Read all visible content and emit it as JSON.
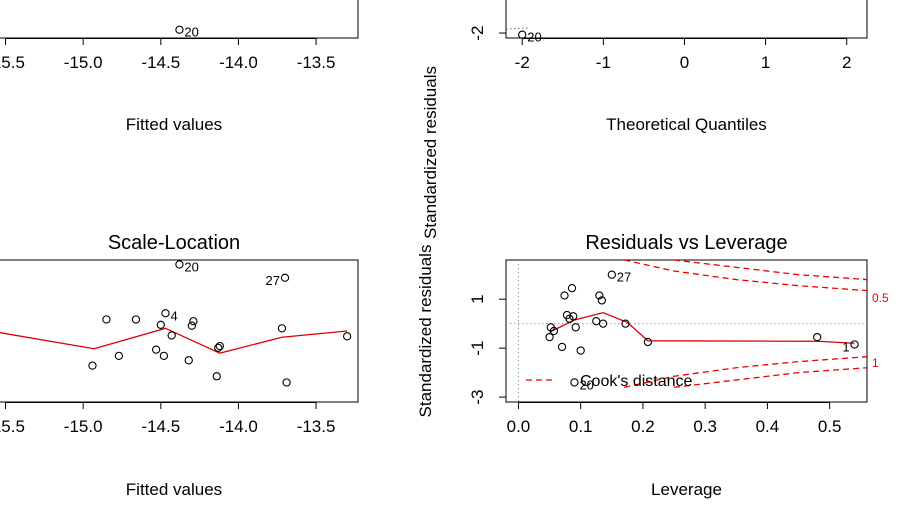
{
  "colors": {
    "points": "#000000",
    "smooth": "#dd0000",
    "cook": "#ee0000",
    "reference": "#999999"
  },
  "chart_data": [
    {
      "id": "residuals-vs-fitted",
      "type": "scatter",
      "title": "",
      "xlabel": "Fitted values",
      "ylabel": "",
      "xlim": [
        -15.6,
        -13.23
      ],
      "ylim": [
        -3.2,
        2.0
      ],
      "xticks": [
        {
          "v": -15.5,
          "label": "-15.5"
        },
        {
          "v": -15.0,
          "label": "-15.0"
        },
        {
          "v": -14.5,
          "label": "-14.5"
        },
        {
          "v": -14.0,
          "label": "-14.0"
        },
        {
          "v": -13.5,
          "label": "-13.5"
        }
      ],
      "yticks": [],
      "points": [
        {
          "x": -14.38,
          "y": -2.2
        }
      ],
      "point_labels": [
        {
          "x": -14.38,
          "y": -2.2,
          "text": "20"
        }
      ]
    },
    {
      "id": "normal-qq",
      "type": "scatter",
      "title": "",
      "xlabel": "Theoretical Quantiles",
      "ylabel": "Standardized residuals",
      "xlim": [
        -2.2,
        2.25
      ],
      "ylim": [
        -2.6,
        2.6
      ],
      "xticks": [
        {
          "v": -2,
          "label": "-2"
        },
        {
          "v": -1,
          "label": "-1"
        },
        {
          "v": 0,
          "label": "0"
        },
        {
          "v": 1,
          "label": "1"
        },
        {
          "v": 2,
          "label": "2"
        }
      ],
      "yticks": [
        {
          "v": -2,
          "label": "-2"
        }
      ],
      "points": [
        {
          "x": -2.0,
          "y": -2.2
        }
      ],
      "point_labels": [
        {
          "x": -2.0,
          "y": -2.2,
          "text": "20"
        }
      ],
      "reference_line": [
        {
          "x": -2.2,
          "y": -1.52
        },
        {
          "x": -1.92,
          "y": -1.38
        }
      ]
    },
    {
      "id": "scale-location",
      "type": "scatter",
      "title": "Scale-Location",
      "xlabel": "Fitted values",
      "ylabel": "",
      "xlim": [
        -15.6,
        -13.23
      ],
      "ylim": [
        0,
        1.6
      ],
      "xticks": [
        {
          "v": -15.5,
          "label": "-15.5"
        },
        {
          "v": -15.0,
          "label": "-15.0"
        },
        {
          "v": -14.5,
          "label": "-14.5"
        },
        {
          "v": -14.0,
          "label": "-14.0"
        },
        {
          "v": -13.5,
          "label": "-13.5"
        }
      ],
      "yticks": [],
      "points": [
        {
          "x": -15.6,
          "y": 0.84
        },
        {
          "x": -14.94,
          "y": 0.41
        },
        {
          "x": -14.85,
          "y": 0.93
        },
        {
          "x": -14.77,
          "y": 0.52
        },
        {
          "x": -14.66,
          "y": 0.93
        },
        {
          "x": -14.53,
          "y": 0.59
        },
        {
          "x": -14.5,
          "y": 0.87
        },
        {
          "x": -14.48,
          "y": 0.52
        },
        {
          "x": -14.47,
          "y": 1.0
        },
        {
          "x": -14.43,
          "y": 0.75
        },
        {
          "x": -14.38,
          "y": 1.55
        },
        {
          "x": -14.32,
          "y": 0.47
        },
        {
          "x": -14.3,
          "y": 0.86
        },
        {
          "x": -14.29,
          "y": 0.91
        },
        {
          "x": -14.14,
          "y": 0.29
        },
        {
          "x": -14.13,
          "y": 0.61
        },
        {
          "x": -14.12,
          "y": 0.63
        },
        {
          "x": -13.72,
          "y": 0.83
        },
        {
          "x": -13.7,
          "y": 1.4
        },
        {
          "x": -13.69,
          "y": 0.22
        },
        {
          "x": -13.3,
          "y": 0.74
        }
      ],
      "point_labels": [
        {
          "x": -14.38,
          "y": 1.55,
          "text": "20"
        },
        {
          "x": -13.7,
          "y": 1.4,
          "text": "27"
        },
        {
          "x": -14.47,
          "y": 1.0,
          "text": "4"
        }
      ],
      "smooth_line": [
        {
          "x": -15.6,
          "y": 0.8
        },
        {
          "x": -14.93,
          "y": 0.6
        },
        {
          "x": -14.47,
          "y": 0.83
        },
        {
          "x": -14.12,
          "y": 0.55
        },
        {
          "x": -13.72,
          "y": 0.73
        },
        {
          "x": -13.3,
          "y": 0.8
        }
      ]
    },
    {
      "id": "residuals-vs-leverage",
      "type": "scatter",
      "title": "Residuals vs Leverage",
      "xlabel": "Leverage",
      "ylabel": "Standardized residuals",
      "xlim": [
        -0.02,
        0.56
      ],
      "ylim": [
        -3.2,
        2.6
      ],
      "xticks": [
        {
          "v": 0.0,
          "label": "0.0"
        },
        {
          "v": 0.1,
          "label": "0.1"
        },
        {
          "v": 0.2,
          "label": "0.2"
        },
        {
          "v": 0.3,
          "label": "0.3"
        },
        {
          "v": 0.4,
          "label": "0.4"
        },
        {
          "v": 0.5,
          "label": "0.5"
        }
      ],
      "yticks": [
        {
          "v": -3,
          "label": "-3"
        },
        {
          "v": -1,
          "label": "-1"
        },
        {
          "v": 1,
          "label": "1"
        }
      ],
      "points": [
        {
          "x": 0.05,
          "y": -0.55
        },
        {
          "x": 0.052,
          "y": -0.15
        },
        {
          "x": 0.057,
          "y": -0.3
        },
        {
          "x": 0.07,
          "y": -0.95
        },
        {
          "x": 0.074,
          "y": 1.15
        },
        {
          "x": 0.078,
          "y": 0.35
        },
        {
          "x": 0.082,
          "y": 0.2
        },
        {
          "x": 0.086,
          "y": 1.45
        },
        {
          "x": 0.088,
          "y": 0.3
        },
        {
          "x": 0.09,
          "y": -2.4
        },
        {
          "x": 0.092,
          "y": -0.15
        },
        {
          "x": 0.1,
          "y": -1.1
        },
        {
          "x": 0.125,
          "y": 0.1
        },
        {
          "x": 0.13,
          "y": 1.15
        },
        {
          "x": 0.134,
          "y": 0.95
        },
        {
          "x": 0.136,
          "y": 0.0
        },
        {
          "x": 0.15,
          "y": 2.0
        },
        {
          "x": 0.172,
          "y": 0.0
        },
        {
          "x": 0.208,
          "y": -0.75
        },
        {
          "x": 0.48,
          "y": -0.55
        },
        {
          "x": 0.54,
          "y": -0.85
        }
      ],
      "point_labels": [
        {
          "x": 0.15,
          "y": 2.0,
          "text": "27"
        },
        {
          "x": 0.09,
          "y": -2.4,
          "text": "20"
        },
        {
          "x": 0.54,
          "y": -0.85,
          "text": "1"
        }
      ],
      "smooth_line": [
        {
          "x": 0.05,
          "y": -0.35
        },
        {
          "x": 0.09,
          "y": 0.15
        },
        {
          "x": 0.136,
          "y": 0.45
        },
        {
          "x": 0.175,
          "y": 0.05
        },
        {
          "x": 0.208,
          "y": -0.7
        },
        {
          "x": 0.48,
          "y": -0.72
        },
        {
          "x": 0.54,
          "y": -0.8
        }
      ],
      "cook_contours": [
        {
          "label": "0.5",
          "points": [
            [
              0.17,
              2.6
            ],
            [
              0.25,
              2.15
            ],
            [
              0.35,
              1.8
            ],
            [
              0.45,
              1.55
            ],
            [
              0.56,
              1.35
            ]
          ]
        },
        {
          "label": "0.5",
          "points": [
            [
              0.17,
              -2.6
            ],
            [
              0.25,
              -2.15
            ],
            [
              0.35,
              -1.8
            ],
            [
              0.45,
              -1.55
            ],
            [
              0.56,
              -1.35
            ]
          ]
        },
        {
          "label": "1",
          "points": [
            [
              0.25,
              2.6
            ],
            [
              0.35,
              2.3
            ],
            [
              0.45,
              2.0
            ],
            [
              0.56,
              1.8
            ]
          ]
        },
        {
          "label": "1",
          "points": [
            [
              0.25,
              -2.6
            ],
            [
              0.35,
              -2.3
            ],
            [
              0.45,
              -2.0
            ],
            [
              0.56,
              -1.8
            ]
          ]
        }
      ],
      "cook_labels": [
        {
          "y": 1.05,
          "text": "0.5"
        },
        {
          "y": -1.6,
          "text": "1"
        }
      ],
      "legend": {
        "text": "Cook's distance",
        "position": "bottom-left"
      }
    }
  ]
}
